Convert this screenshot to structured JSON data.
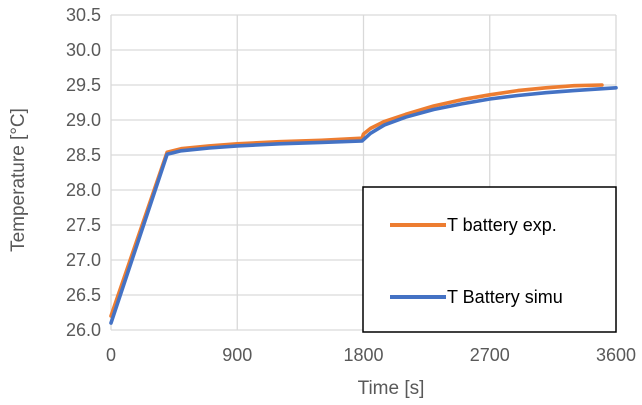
{
  "chart_data": {
    "type": "line",
    "title": "",
    "xlabel": "Time [s]",
    "ylabel": "Temperature [°C]",
    "xlim": [
      0,
      3600
    ],
    "ylim": [
      26.0,
      30.5
    ],
    "xticks": [
      0,
      900,
      1800,
      2700,
      3600
    ],
    "xtick_labels": [
      "0",
      "900",
      "1800",
      "2700",
      "3600"
    ],
    "yticks": [
      26.0,
      26.5,
      27.0,
      27.5,
      28.0,
      28.5,
      29.0,
      29.5,
      30.0,
      30.5
    ],
    "ytick_labels": [
      "26.0",
      "26.5",
      "27.0",
      "27.5",
      "28.0",
      "28.5",
      "29.0",
      "29.5",
      "30.0",
      "30.5"
    ],
    "grid": true,
    "legend_position": "bottom-right",
    "series": [
      {
        "name": "T battery exp.",
        "color": "#ED7D31",
        "x": [
          0,
          400,
          500,
          700,
          900,
          1200,
          1500,
          1790,
          1800,
          1850,
          1950,
          2100,
          2300,
          2500,
          2700,
          2900,
          3100,
          3300,
          3500
        ],
        "y": [
          26.2,
          28.54,
          28.59,
          28.63,
          28.66,
          28.69,
          28.71,
          28.74,
          28.8,
          28.88,
          28.98,
          29.08,
          29.2,
          29.29,
          29.36,
          29.42,
          29.46,
          29.49,
          29.5
        ]
      },
      {
        "name": "T Battery simu",
        "color": "#4472C4",
        "x": [
          0,
          400,
          500,
          700,
          900,
          1200,
          1500,
          1790,
          1800,
          1850,
          1950,
          2100,
          2300,
          2500,
          2700,
          2900,
          3100,
          3300,
          3600
        ],
        "y": [
          26.1,
          28.51,
          28.56,
          28.6,
          28.63,
          28.66,
          28.68,
          28.7,
          28.72,
          28.81,
          28.93,
          29.04,
          29.15,
          29.23,
          29.3,
          29.35,
          29.39,
          29.42,
          29.46
        ]
      }
    ]
  }
}
